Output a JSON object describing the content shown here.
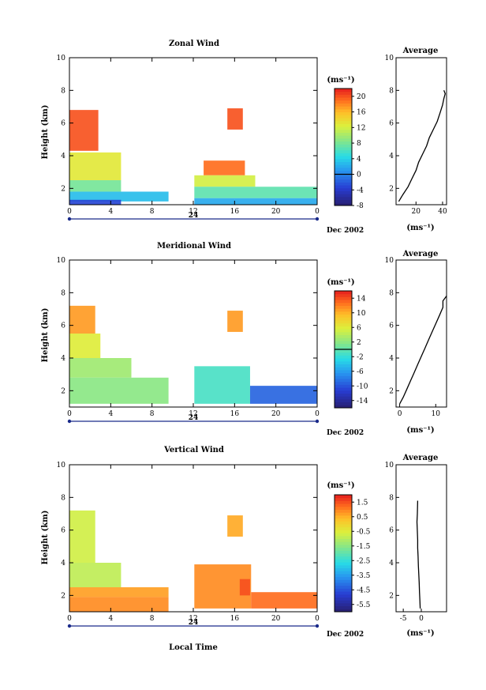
{
  "figure": {
    "panels": [
      {
        "title": "Zonal Wind",
        "ylabel": "Height (km)",
        "unit_label": "(ms⁻¹)",
        "colorbar_ticks": [
          "20",
          "16",
          "12",
          "8",
          "4",
          "0",
          "-4",
          "-8"
        ],
        "avg_title": "Average",
        "avg_xlabel": "(ms⁻¹)",
        "avg_xticks": [
          "20",
          "40"
        ],
        "date_label": "Dec 2002"
      },
      {
        "title": "Meridional Wind",
        "ylabel": "Height (km)",
        "unit_label": "(ms⁻¹)",
        "colorbar_ticks": [
          "14",
          "10",
          "6",
          "2",
          "-2",
          "-6",
          "-10",
          "-14"
        ],
        "avg_title": "Average",
        "avg_xlabel": "(ms⁻¹)",
        "avg_xticks": [
          "0",
          "10"
        ],
        "date_label": "Dec 2002"
      },
      {
        "title": "Vertical Wind",
        "ylabel": "Height (km)",
        "unit_label": "(ms⁻¹)",
        "colorbar_ticks": [
          "1.5",
          "0.5",
          "-0.5",
          "-1.5",
          "-2.5",
          "-3.5",
          "-4.5",
          "-5.5"
        ],
        "avg_title": "Average",
        "avg_xlabel": "(ms⁻¹)",
        "avg_xticks": [
          "-5",
          "0"
        ],
        "date_label": "Dec 2002"
      }
    ],
    "xticks": [
      "0",
      "4",
      "8",
      "12",
      "16",
      "20",
      "0"
    ],
    "yticks": [
      "10",
      "8",
      "6",
      "4",
      "2"
    ],
    "day_label": "24",
    "xlabel": "Local Time"
  },
  "chart_data": [
    {
      "type": "heatmap",
      "title": "Zonal Wind",
      "ylabel": "Height (km)",
      "xlim": [
        0,
        24
      ],
      "ylim": [
        1,
        10
      ],
      "colorbar": {
        "unit": "ms-1",
        "range": [
          -8,
          22
        ],
        "ticks": [
          20,
          16,
          12,
          8,
          4,
          0,
          -4,
          -8
        ]
      },
      "regions": [
        {
          "x": [
            0,
            2.8
          ],
          "y": [
            4.3,
            6.8
          ],
          "value": 20
        },
        {
          "x": [
            0,
            5
          ],
          "y": [
            2.5,
            4.2
          ],
          "value": 13
        },
        {
          "x": [
            0,
            5
          ],
          "y": [
            1.8,
            2.5
          ],
          "value": 8
        },
        {
          "x": [
            0,
            9.6
          ],
          "y": [
            1.2,
            1.8
          ],
          "value": 3
        },
        {
          "x": [
            0,
            5
          ],
          "y": [
            1,
            1.3
          ],
          "value": -3
        },
        {
          "x": [
            15.3,
            16.8
          ],
          "y": [
            5.6,
            6.9
          ],
          "value": 20
        },
        {
          "x": [
            13,
            17
          ],
          "y": [
            2.8,
            3.7
          ],
          "value": 19
        },
        {
          "x": [
            12.1,
            18
          ],
          "y": [
            2.1,
            2.8
          ],
          "value": 12
        },
        {
          "x": [
            12.1,
            24
          ],
          "y": [
            1.4,
            2.1
          ],
          "value": 7
        },
        {
          "x": [
            12.1,
            24
          ],
          "y": [
            1,
            1.4
          ],
          "value": 2
        }
      ],
      "average_profile": {
        "title": "Average",
        "xlabel": "ms-1",
        "xlim": [
          5,
          43
        ],
        "x": [
          7,
          10,
          14,
          17,
          20,
          22,
          25,
          28,
          30,
          33,
          36,
          38,
          40,
          41,
          42,
          41
        ],
        "y": [
          1.2,
          1.6,
          2.1,
          2.6,
          3.1,
          3.6,
          4.1,
          4.6,
          5.1,
          5.6,
          6.1,
          6.6,
          7.1,
          7.5,
          7.8,
          8.0
        ]
      }
    },
    {
      "type": "heatmap",
      "title": "Meridional Wind",
      "ylabel": "Height (km)",
      "xlim": [
        0,
        24
      ],
      "ylim": [
        1,
        10
      ],
      "colorbar": {
        "unit": "ms-1",
        "range": [
          -16,
          16
        ],
        "ticks": [
          14,
          10,
          6,
          2,
          -2,
          -6,
          -10,
          -14
        ]
      },
      "regions": [
        {
          "x": [
            0,
            2.5
          ],
          "y": [
            5.5,
            7.2
          ],
          "value": 11
        },
        {
          "x": [
            0,
            3
          ],
          "y": [
            4,
            5.5
          ],
          "value": 6
        },
        {
          "x": [
            0,
            6
          ],
          "y": [
            2.8,
            4
          ],
          "value": 3
        },
        {
          "x": [
            0,
            9.6
          ],
          "y": [
            1.2,
            2.8
          ],
          "value": 2
        },
        {
          "x": [
            15.3,
            16.8
          ],
          "y": [
            5.6,
            6.9
          ],
          "value": 11
        },
        {
          "x": [
            12.1,
            17.5
          ],
          "y": [
            1.2,
            3.5
          ],
          "value": -1
        },
        {
          "x": [
            17.5,
            24
          ],
          "y": [
            1.2,
            2.3
          ],
          "value": -9
        }
      ],
      "average_profile": {
        "title": "Average",
        "xlabel": "ms-1",
        "xlim": [
          -1,
          13
        ],
        "x": [
          0,
          1,
          2,
          3,
          4,
          5,
          6,
          7,
          8,
          9,
          10,
          11,
          12,
          12,
          13
        ],
        "y": [
          1.2,
          1.6,
          2.1,
          2.6,
          3.1,
          3.6,
          4.1,
          4.6,
          5.1,
          5.6,
          6.1,
          6.6,
          7.1,
          7.5,
          7.8
        ]
      }
    },
    {
      "type": "heatmap",
      "title": "Vertical Wind",
      "ylabel": "Height (km)",
      "xlabel": "Local Time",
      "xlim": [
        0,
        24
      ],
      "ylim": [
        1,
        10
      ],
      "colorbar": {
        "unit": "ms-1",
        "range": [
          -6,
          2
        ],
        "ticks": [
          1.5,
          0.5,
          -0.5,
          -1.5,
          -2.5,
          -3.5,
          -4.5,
          -5.5
        ]
      },
      "regions": [
        {
          "x": [
            0,
            2.5
          ],
          "y": [
            4,
            7.2
          ],
          "value": -0.7
        },
        {
          "x": [
            0,
            5
          ],
          "y": [
            2.5,
            4
          ],
          "value": -0.9
        },
        {
          "x": [
            0,
            9.6
          ],
          "y": [
            1.9,
            2.5
          ],
          "value": 0.7
        },
        {
          "x": [
            0,
            9.6
          ],
          "y": [
            1,
            1.9
          ],
          "value": 0.9
        },
        {
          "x": [
            15.3,
            16.8
          ],
          "y": [
            5.6,
            6.9
          ],
          "value": 0.6
        },
        {
          "x": [
            12.1,
            17.6
          ],
          "y": [
            1.2,
            3.9
          ],
          "value": 0.9
        },
        {
          "x": [
            16.5,
            17.5
          ],
          "y": [
            2,
            3
          ],
          "value": 1.5
        },
        {
          "x": [
            17.6,
            24
          ],
          "y": [
            1.2,
            2.2
          ],
          "value": 1.2
        }
      ],
      "average_profile": {
        "title": "Average",
        "xlabel": "ms-1",
        "xlim": [
          -7,
          7
        ],
        "x": [
          -0.3,
          -0.4,
          -0.5,
          -0.6,
          -0.7,
          -0.8,
          -0.9,
          -1.0,
          -1.0,
          -1.1,
          -1.2,
          -1.1,
          -1.0
        ],
        "y": [
          1.2,
          1.7,
          2.2,
          2.8,
          3.3,
          3.8,
          4.4,
          4.9,
          5.4,
          5.9,
          6.5,
          7.0,
          7.8
        ]
      }
    }
  ]
}
